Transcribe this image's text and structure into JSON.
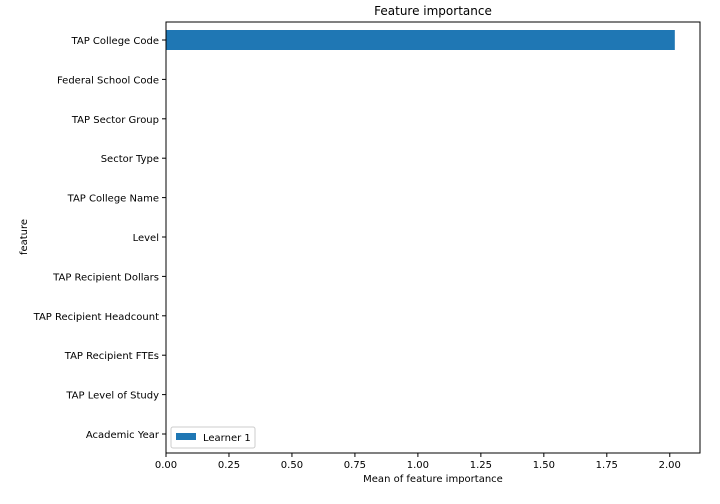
{
  "chart_data": {
    "type": "bar",
    "orientation": "horizontal",
    "title": "Feature importance",
    "xlabel": "Mean of feature importance",
    "ylabel": "feature",
    "xlim": [
      0,
      2.12
    ],
    "xticks": [
      "0.00",
      "0.25",
      "0.50",
      "0.75",
      "1.00",
      "1.25",
      "1.50",
      "1.75",
      "2.00"
    ],
    "grid": false,
    "legend_position": "lower-left",
    "categories": [
      "TAP College Code",
      "Federal School Code",
      "TAP Sector Group",
      "Sector Type",
      "TAP College Name",
      "Level",
      "TAP Recipient Dollars",
      "TAP Recipient Headcount",
      "TAP Recipient FTEs",
      "TAP Level of Study",
      "Academic Year"
    ],
    "series": [
      {
        "name": "Learner 1",
        "color": "#1f77b4",
        "values": [
          2.02,
          0,
          0,
          0,
          0,
          0,
          0,
          0,
          0,
          0,
          0
        ]
      }
    ]
  }
}
